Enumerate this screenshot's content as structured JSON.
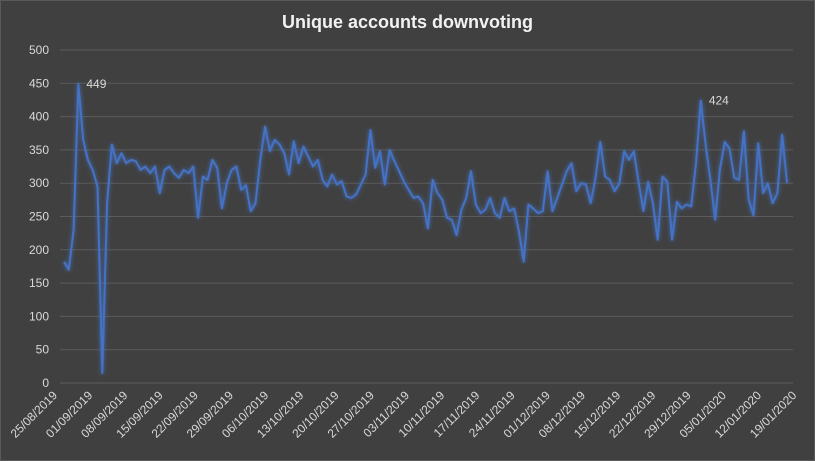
{
  "chart_data": {
    "type": "line",
    "title": "Unique accounts downvoting",
    "xlabel": "",
    "ylabel": "",
    "ylim": [
      0,
      500
    ],
    "y_ticks": [
      0,
      50,
      100,
      150,
      200,
      250,
      300,
      350,
      400,
      450,
      500
    ],
    "gridlines": true,
    "legend": "none",
    "x_ticks": [
      "25/08/2019",
      "01/09/2019",
      "08/09/2019",
      "15/09/2019",
      "22/09/2019",
      "29/09/2019",
      "06/10/2019",
      "13/10/2019",
      "20/10/2019",
      "27/10/2019",
      "03/11/2019",
      "10/11/2019",
      "17/11/2019",
      "24/11/2019",
      "01/12/2019",
      "08/12/2019",
      "15/12/2019",
      "22/12/2019",
      "29/12/2019",
      "05/01/2020",
      "12/01/2020",
      "19/01/2020"
    ],
    "series": [
      {
        "color": "#4472c4",
        "values": [
          182,
          170,
          230,
          449,
          365,
          335,
          320,
          295,
          15,
          270,
          358,
          330,
          345,
          330,
          335,
          333,
          320,
          325,
          315,
          325,
          285,
          320,
          325,
          315,
          308,
          320,
          315,
          325,
          248,
          310,
          305,
          335,
          323,
          262,
          300,
          320,
          325,
          290,
          297,
          258,
          270,
          335,
          385,
          348,
          365,
          358,
          345,
          313,
          363,
          330,
          355,
          340,
          325,
          335,
          305,
          295,
          313,
          298,
          303,
          280,
          278,
          283,
          298,
          313,
          380,
          323,
          348,
          298,
          350,
          333,
          318,
          302,
          290,
          278,
          280,
          270,
          232,
          305,
          285,
          275,
          248,
          245,
          222,
          260,
          278,
          318,
          268,
          255,
          260,
          278,
          255,
          248,
          278,
          258,
          262,
          228,
          182,
          268,
          262,
          255,
          258,
          318,
          258,
          278,
          298,
          318,
          330,
          288,
          300,
          298,
          270,
          308,
          362,
          310,
          305,
          288,
          300,
          348,
          335,
          348,
          302,
          258,
          302,
          270,
          215,
          310,
          302,
          215,
          272,
          262,
          268,
          265,
          330,
          424,
          358,
          305,
          245,
          322,
          362,
          352,
          308,
          305,
          378,
          275,
          252,
          360,
          285,
          300,
          270,
          285,
          373,
          300
        ]
      }
    ],
    "annotations": [
      {
        "index": 3,
        "text": "449"
      },
      {
        "index": 133,
        "text": "424"
      }
    ]
  }
}
